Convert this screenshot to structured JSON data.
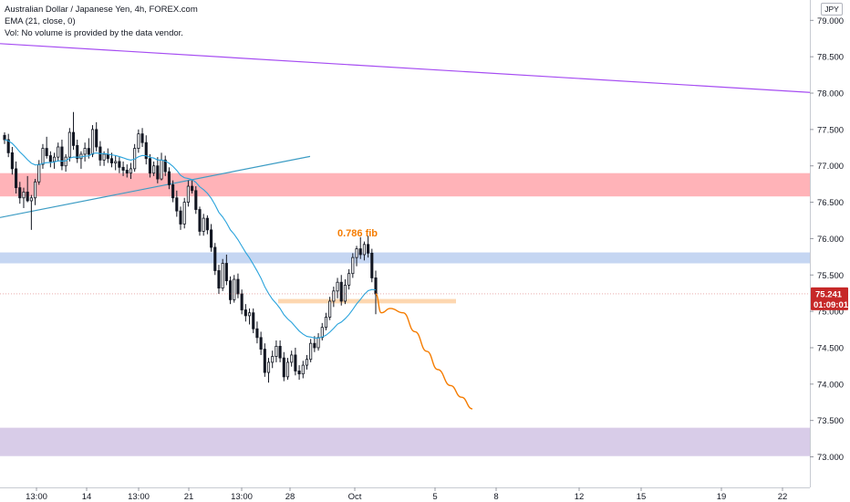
{
  "legend": {
    "title": "Australian Dollar / Japanese Yen, 4h, FOREX.com",
    "ema": "EMA (21, close, 0)",
    "vol": "Vol: No volume is provided by the data vendor."
  },
  "currency_button": "JPY",
  "price_badge": {
    "price": "75.241",
    "countdown": "01:09:01",
    "color": "#c62828"
  },
  "colors": {
    "up": "#ffffff",
    "down": "#131722",
    "ema": "#29a3dc",
    "resistance_zone": "#ffb3b8",
    "support_zone": "#c5d6f2",
    "target_zone": "#d8cce8",
    "entry_zone": "#fdd7b0",
    "long_trendline": "#a64df2",
    "short_trendline": "#3c9cc4",
    "projection": "#f57c00"
  },
  "chart_data": {
    "type": "candlestick",
    "symbol": "AUDJPY",
    "timeframe": "4h",
    "y_ticks": [
      "73.000",
      "73.500",
      "74.000",
      "74.500",
      "75.000",
      "75.500",
      "76.000",
      "76.500",
      "77.000",
      "77.500",
      "78.000",
      "78.500",
      "79.000"
    ],
    "x_ticks": [
      "13:00",
      "14",
      "13:00",
      "21",
      "13:00",
      "28",
      "Oct",
      "5",
      "8",
      "12",
      "15",
      "19",
      "22"
    ],
    "ylim": [
      72.58,
      79.28
    ],
    "zones": [
      {
        "name": "resistance",
        "from": 76.58,
        "to": 76.9
      },
      {
        "name": "support",
        "from": 75.66,
        "to": 75.81
      },
      {
        "name": "entry",
        "from": 75.11,
        "to": 75.17
      },
      {
        "name": "target",
        "from": 73.01,
        "to": 73.4
      }
    ],
    "annotation": "0.786 fib",
    "current_price": 75.241,
    "candles_ohlc": [
      [
        77.42,
        77.46,
        77.3,
        77.36
      ],
      [
        77.36,
        77.44,
        77.12,
        77.18
      ],
      [
        77.18,
        77.26,
        76.88,
        76.96
      ],
      [
        76.96,
        77.06,
        76.62,
        76.7
      ],
      [
        76.7,
        76.78,
        76.48,
        76.56
      ],
      [
        76.56,
        76.7,
        76.42,
        76.64
      ],
      [
        76.64,
        76.86,
        76.5,
        76.52
      ],
      [
        76.52,
        76.6,
        76.12,
        76.56
      ],
      [
        76.56,
        76.82,
        76.46,
        76.78
      ],
      [
        76.78,
        77.08,
        76.74,
        77.02
      ],
      [
        77.02,
        77.3,
        76.96,
        77.24
      ],
      [
        77.24,
        77.4,
        77.1,
        77.14
      ],
      [
        77.14,
        77.2,
        76.98,
        77.06
      ],
      [
        77.06,
        77.18,
        76.96,
        77.12
      ],
      [
        77.12,
        77.32,
        77.06,
        77.26
      ],
      [
        77.26,
        77.36,
        76.94,
        77.0
      ],
      [
        77.0,
        77.16,
        76.92,
        77.12
      ],
      [
        77.12,
        77.52,
        77.06,
        77.46
      ],
      [
        77.46,
        77.74,
        77.22,
        77.28
      ],
      [
        77.28,
        77.36,
        77.04,
        77.1
      ],
      [
        77.1,
        77.2,
        76.96,
        77.16
      ],
      [
        77.16,
        77.32,
        77.06,
        77.24
      ],
      [
        77.24,
        77.38,
        77.1,
        77.16
      ],
      [
        77.16,
        77.56,
        77.12,
        77.5
      ],
      [
        77.5,
        77.6,
        77.2,
        77.26
      ],
      [
        77.26,
        77.34,
        77.0,
        77.08
      ],
      [
        77.08,
        77.2,
        77.0,
        77.16
      ],
      [
        77.16,
        77.24,
        77.04,
        77.1
      ],
      [
        77.1,
        77.18,
        76.98,
        77.04
      ],
      [
        77.04,
        77.14,
        76.94,
        77.06
      ],
      [
        77.06,
        77.12,
        76.9,
        76.98
      ],
      [
        76.98,
        77.06,
        76.86,
        76.94
      ],
      [
        76.94,
        77.02,
        76.84,
        76.9
      ],
      [
        76.9,
        77.04,
        76.82,
        76.96
      ],
      [
        76.96,
        77.3,
        76.92,
        77.24
      ],
      [
        77.24,
        77.5,
        77.18,
        77.44
      ],
      [
        77.44,
        77.52,
        77.26,
        77.32
      ],
      [
        77.32,
        77.42,
        77.02,
        77.1
      ],
      [
        77.1,
        77.16,
        76.84,
        76.9
      ],
      [
        76.9,
        77.06,
        76.86,
        77.0
      ],
      [
        77.0,
        77.12,
        76.76,
        76.82
      ],
      [
        76.82,
        77.18,
        76.8,
        77.08
      ],
      [
        77.08,
        77.14,
        76.86,
        76.92
      ],
      [
        76.92,
        76.98,
        76.68,
        76.74
      ],
      [
        76.74,
        76.8,
        76.5,
        76.56
      ],
      [
        76.56,
        76.66,
        76.3,
        76.38
      ],
      [
        76.38,
        76.44,
        76.12,
        76.2
      ],
      [
        76.2,
        76.56,
        76.14,
        76.5
      ],
      [
        76.5,
        76.8,
        76.44,
        76.72
      ],
      [
        76.72,
        76.8,
        76.62,
        76.66
      ],
      [
        76.66,
        76.72,
        76.34,
        76.4
      ],
      [
        76.4,
        76.44,
        76.04,
        76.1
      ],
      [
        76.1,
        76.34,
        76.04,
        76.28
      ],
      [
        76.28,
        76.32,
        76.06,
        76.12
      ],
      [
        76.12,
        76.2,
        75.82,
        75.88
      ],
      [
        75.88,
        75.94,
        75.5,
        75.56
      ],
      [
        75.56,
        75.64,
        75.24,
        75.32
      ],
      [
        75.32,
        75.72,
        75.28,
        75.66
      ],
      [
        75.66,
        75.78,
        75.36,
        75.42
      ],
      [
        75.42,
        75.48,
        75.1,
        75.16
      ],
      [
        75.16,
        75.5,
        75.12,
        75.44
      ],
      [
        75.44,
        75.52,
        75.18,
        75.24
      ],
      [
        75.24,
        75.3,
        74.96,
        75.02
      ],
      [
        75.02,
        75.1,
        74.86,
        74.94
      ],
      [
        74.94,
        75.04,
        74.82,
        74.98
      ],
      [
        74.98,
        75.04,
        74.7,
        74.76
      ],
      [
        74.76,
        74.86,
        74.56,
        74.64
      ],
      [
        74.64,
        74.72,
        74.4,
        74.48
      ],
      [
        74.48,
        74.56,
        74.1,
        74.16
      ],
      [
        74.16,
        74.36,
        74.02,
        74.3
      ],
      [
        74.3,
        74.46,
        74.22,
        74.38
      ],
      [
        74.38,
        74.6,
        74.3,
        74.52
      ],
      [
        74.52,
        74.6,
        74.3,
        74.36
      ],
      [
        74.36,
        74.44,
        74.04,
        74.1
      ],
      [
        74.1,
        74.36,
        74.06,
        74.3
      ],
      [
        74.3,
        74.46,
        74.24,
        74.4
      ],
      [
        74.4,
        74.5,
        74.12,
        74.18
      ],
      [
        74.18,
        74.26,
        74.06,
        74.14
      ],
      [
        74.14,
        74.32,
        74.08,
        74.26
      ],
      [
        74.26,
        74.4,
        74.2,
        74.34
      ],
      [
        74.34,
        74.62,
        74.3,
        74.56
      ],
      [
        74.56,
        74.66,
        74.44,
        74.5
      ],
      [
        74.5,
        74.7,
        74.46,
        74.64
      ],
      [
        74.64,
        74.84,
        74.6,
        74.78
      ],
      [
        74.78,
        74.98,
        74.74,
        74.92
      ],
      [
        74.92,
        75.2,
        74.88,
        75.14
      ],
      [
        75.14,
        75.34,
        75.06,
        75.28
      ],
      [
        75.28,
        75.46,
        75.18,
        75.4
      ],
      [
        75.4,
        75.5,
        75.08,
        75.14
      ],
      [
        75.14,
        75.44,
        75.1,
        75.36
      ],
      [
        75.36,
        75.58,
        75.3,
        75.52
      ],
      [
        75.52,
        75.8,
        75.46,
        75.74
      ],
      [
        75.74,
        75.9,
        75.62,
        75.86
      ],
      [
        75.86,
        76.02,
        75.72,
        75.78
      ],
      [
        75.78,
        75.96,
        75.7,
        75.92
      ],
      [
        75.92,
        76.04,
        75.74,
        75.8
      ],
      [
        75.8,
        75.86,
        75.4,
        75.46
      ],
      [
        75.46,
        75.56,
        74.96,
        75.24
      ]
    ]
  }
}
